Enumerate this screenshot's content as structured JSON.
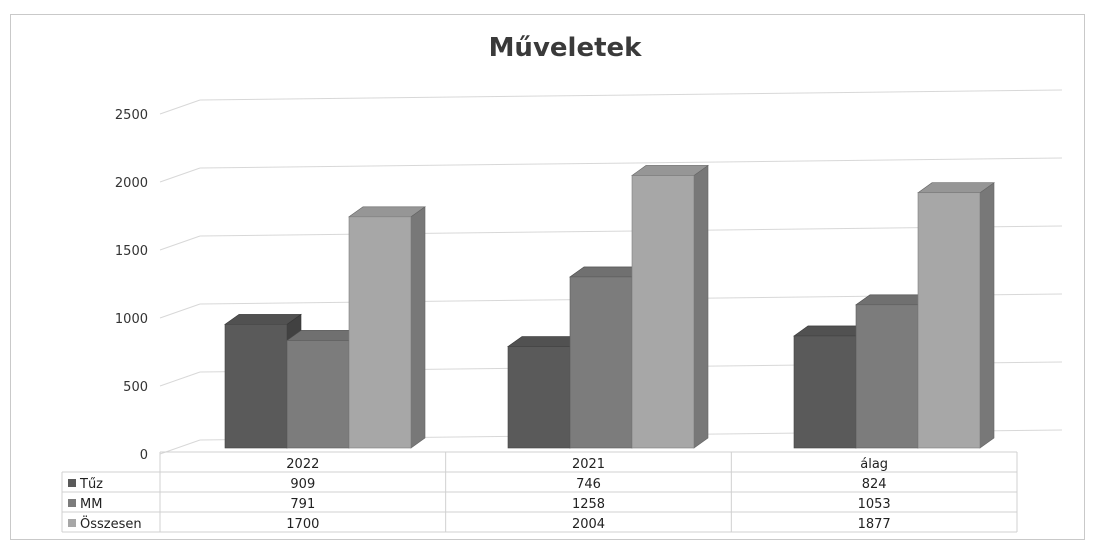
{
  "chart_data": {
    "type": "bar",
    "title": "Műveletek",
    "categories": [
      "2022",
      "2021",
      "álag"
    ],
    "series": [
      {
        "name": "Tűz",
        "values": [
          909,
          746,
          824
        ],
        "color": "#5a5a5a"
      },
      {
        "name": "MM",
        "values": [
          791,
          1258,
          1053
        ],
        "color": "#7c7c7c"
      },
      {
        "name": "Összesen",
        "values": [
          1700,
          2004,
          1877
        ],
        "color": "#a7a7a7"
      }
    ],
    "y_ticks": [
      "0",
      "500",
      "1000",
      "1500",
      "2000",
      "2500"
    ],
    "ylim": [
      0,
      2500
    ],
    "grid": true,
    "legend": "data-table",
    "style": "3d-column"
  }
}
